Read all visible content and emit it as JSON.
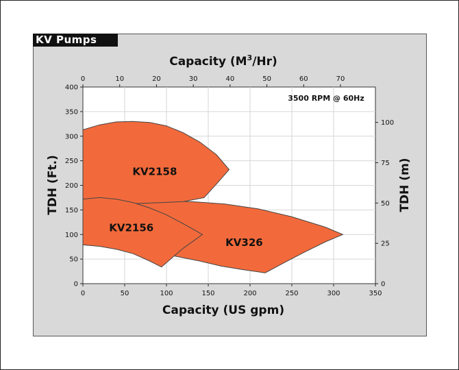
{
  "chart_data": {
    "type": "area",
    "title": "KV Pumps",
    "annotation": "3500 RPM @ 60Hz",
    "xlabel": "Capacity (US gpm)",
    "x2label_main": "Capacity (M",
    "x2label_sup": "3",
    "x2label_tail": "/Hr)",
    "ylabel": "TDH (Ft.)",
    "y2label": "TDH (m)",
    "xlim": [
      0,
      350
    ],
    "ylim": [
      0,
      400
    ],
    "x_ticks": [
      0,
      50,
      100,
      150,
      200,
      250,
      300,
      350
    ],
    "y_ticks": [
      0,
      50,
      100,
      150,
      200,
      250,
      300,
      350,
      400
    ],
    "x2_ticks": [
      0,
      10,
      20,
      30,
      40,
      50,
      60,
      70
    ],
    "y2_ticks": [
      0,
      25,
      50,
      75,
      100
    ],
    "grid": true,
    "fill_color": "#f26a3b",
    "stroke_color": "#444444",
    "series": [
      {
        "name": "KV326",
        "label_at": [
          193,
          83
        ],
        "points": [
          [
            0,
            79
          ],
          [
            30,
            75
          ],
          [
            60,
            70
          ],
          [
            90,
            62
          ],
          [
            110,
            56
          ],
          [
            140,
            46
          ],
          [
            165,
            36
          ],
          [
            190,
            29
          ],
          [
            218,
            22
          ],
          [
            240,
            42
          ],
          [
            265,
            64
          ],
          [
            290,
            85
          ],
          [
            311,
            100
          ],
          [
            290,
            115
          ],
          [
            250,
            136
          ],
          [
            210,
            152
          ],
          [
            170,
            162
          ],
          [
            130,
            167
          ],
          [
            95,
            168
          ],
          [
            65,
            168
          ],
          [
            50,
            168
          ],
          [
            35,
            158
          ],
          [
            15,
            127
          ],
          [
            0,
            117
          ]
        ]
      },
      {
        "name": "KV2158",
        "label_at": [
          86,
          227
        ],
        "points": [
          [
            0,
            313
          ],
          [
            20,
            323
          ],
          [
            40,
            329
          ],
          [
            60,
            330
          ],
          [
            80,
            328
          ],
          [
            100,
            321
          ],
          [
            120,
            307
          ],
          [
            140,
            288
          ],
          [
            160,
            262
          ],
          [
            175,
            232
          ],
          [
            160,
            203
          ],
          [
            145,
            175
          ],
          [
            120,
            167
          ],
          [
            95,
            165
          ],
          [
            65,
            163
          ],
          [
            50,
            163
          ],
          [
            0,
            163
          ]
        ]
      },
      {
        "name": "KV2156",
        "label_at": [
          58,
          113
        ],
        "points": [
          [
            0,
            172
          ],
          [
            20,
            175
          ],
          [
            40,
            172
          ],
          [
            60,
            165
          ],
          [
            80,
            154
          ],
          [
            100,
            140
          ],
          [
            120,
            122
          ],
          [
            143,
            100
          ],
          [
            120,
            72
          ],
          [
            94,
            34
          ],
          [
            80,
            46
          ],
          [
            60,
            61
          ],
          [
            40,
            70
          ],
          [
            20,
            76
          ],
          [
            0,
            79
          ]
        ]
      }
    ]
  }
}
